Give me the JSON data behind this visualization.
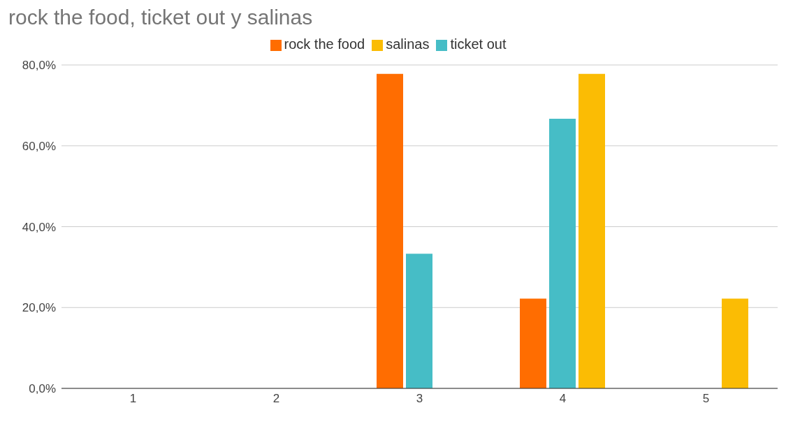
{
  "chart_data": {
    "type": "bar",
    "title": "rock the food, ticket out y salinas",
    "categories": [
      "1",
      "2",
      "3",
      "4",
      "5"
    ],
    "series": [
      {
        "name": "rock the food",
        "color": "#ff6d01",
        "values": [
          0,
          0,
          77.8,
          22.2,
          0
        ]
      },
      {
        "name": "ticket out",
        "color": "#46bdc6",
        "values": [
          0,
          0,
          33.3,
          66.7,
          0
        ]
      },
      {
        "name": "salinas",
        "color": "#fbbc04",
        "values": [
          0,
          0,
          0,
          77.8,
          22.2
        ]
      }
    ],
    "ylim": [
      0,
      80
    ],
    "yticks": [
      {
        "value": 0,
        "label": "0,0%"
      },
      {
        "value": 20,
        "label": "20,0%"
      },
      {
        "value": 40,
        "label": "40,0%"
      },
      {
        "value": 60,
        "label": "60,0%"
      },
      {
        "value": 80,
        "label": "80,0%"
      }
    ],
    "grid": "y",
    "legend": "top"
  }
}
